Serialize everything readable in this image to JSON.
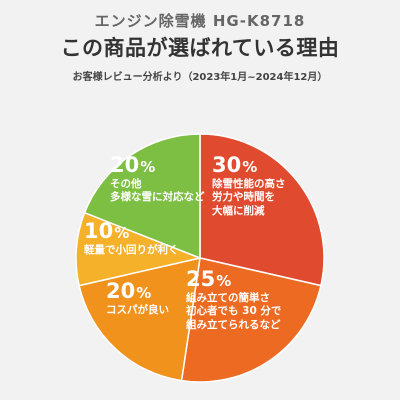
{
  "header": {
    "subtitle": "エンジン除雪機  HG-K8718",
    "title": "この商品が選ばれている理由",
    "note": "お客様レビュー分析より（2023年1月~2024年12月）"
  },
  "chart_data": {
    "type": "pie",
    "unit": "%",
    "slices": [
      {
        "name": "除雪性能の高さ 労力や時間を 大幅に削減",
        "lines": [
          "除雪性能の高さ",
          "労力や時間を",
          "大幅に削減"
        ],
        "value": 30,
        "color": "#e04a2f"
      },
      {
        "name": "組み立ての簡単さ 初心者でも 30 分で 組み立てられるなど",
        "lines": [
          "組み立ての簡単さ",
          "初心者でも 30 分で",
          "組み立てられるなど"
        ],
        "value": 25,
        "color": "#ec6a21"
      },
      {
        "name": "コスパが良い",
        "lines": [
          "コスパが良い"
        ],
        "value": 20,
        "color": "#f0921c"
      },
      {
        "name": "軽量で小回りが利く",
        "lines": [
          "軽量で小回りが利く"
        ],
        "value": 10,
        "color": "#f5b12a"
      },
      {
        "name": "その他 多様な雪に対応など",
        "lines": [
          "その他",
          "多様な雪に対応など"
        ],
        "value": 20,
        "color": "#7cbf43"
      }
    ]
  }
}
